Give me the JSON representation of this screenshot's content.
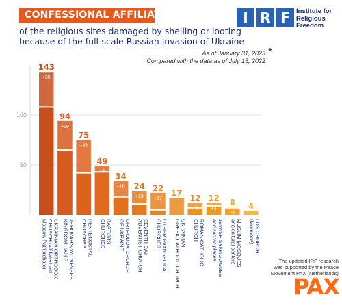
{
  "header": {
    "title": "CONFESSIONAL AFFILIATION",
    "subtitle_line1": "of the religious sites damaged by shelling or looting",
    "subtitle_line2": "because of the full-scale Russian invasion of Ukraine"
  },
  "logo": {
    "letters": [
      "I",
      "R",
      "F"
    ],
    "name_line1": "Institute for",
    "name_line2": "Religious",
    "name_line3": "Freedom",
    "color": "#2a63b5"
  },
  "notes": {
    "as_of": "As of January 31, 2023",
    "compared": "Compared with the data as of July 15, 2022",
    "asterisk": "*"
  },
  "credit": {
    "line1": "The updated IRF research",
    "line2": "was supported by the Peace",
    "line3": "Movement PAX (Netherlands)",
    "pax_logo": "PAX"
  },
  "chart_data": {
    "type": "bar",
    "title": "CONFESSIONAL AFFILIATION",
    "categories": [
      [
        "UKRAINIAN ORTHODOX",
        "CHURCH (affiliated with",
        "Moscow Patriarchate)"
      ],
      [
        "JEHOVAH'S WITNESSES",
        "KINGDOM HALLS"
      ],
      [
        "PENTECOSTAL",
        "CHURCHES"
      ],
      [
        "BAPTISTS",
        "CHURCHES"
      ],
      [
        "ORTHODOX CHURCH",
        "OF UKRAINE"
      ],
      [
        "SEVENTH-DAY",
        "ADVENTIST CHURCH"
      ],
      [
        "OTHER EVANGELICAL",
        "CHURCHES"
      ],
      [
        "UKRAINIAN",
        "GREEK CATHOLIC CHURCH"
      ],
      [
        "ROMAN-CATHOLIC",
        "CHURCH"
      ],
      [
        "JEWISH SYNAGOGUES",
        "and sacred places"
      ],
      [
        "MUSLIM MOSQUES",
        "and cultural centers"
      ],
      [
        "LDS CHURCH",
        "(Mormons)"
      ]
    ],
    "series": [
      {
        "values": [
          143,
          94,
          75,
          49,
          34,
          24,
          22,
          17,
          12,
          12,
          8,
          4
        ]
      },
      {
        "values": [
          35,
          29,
          33,
          6,
          16,
          13,
          17,
          null,
          5,
          3,
          1,
          null
        ]
      }
    ],
    "value_labels": [
      "143",
      "94",
      "75",
      "49",
      "34",
      "24",
      "22",
      "17",
      "12",
      "12",
      "8",
      "4"
    ],
    "increase_labels": [
      "+35",
      "+29",
      "+33",
      "+6",
      "+16",
      "+13",
      "+17",
      "",
      "+5",
      "+3",
      "+1",
      ""
    ],
    "yticks": [
      50,
      100
    ],
    "ylim": [
      0,
      150
    ],
    "grid": true,
    "colors": [
      "#c84e1b",
      "#d65b1d",
      "#dd621e",
      "#e06b1f",
      "#e2711f",
      "#e57a20",
      "#e88121",
      "#ea8a22",
      "#ec9223",
      "#ef9a24",
      "#f1a326",
      "#f3ab28"
    ]
  }
}
